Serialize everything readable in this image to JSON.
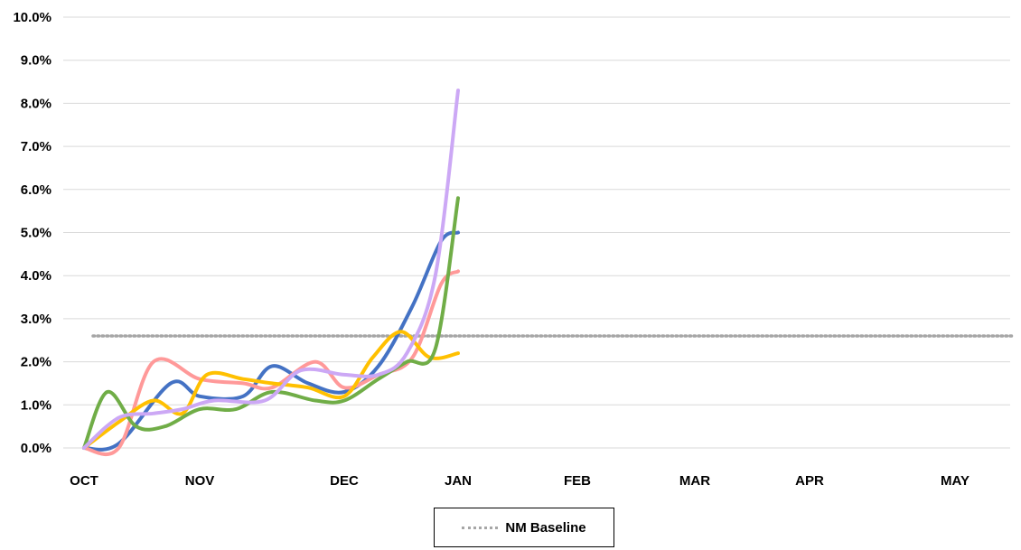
{
  "chart_data": {
    "type": "line",
    "title": "",
    "xlabel": "",
    "ylabel": "",
    "x_ticks": [
      "OCT",
      "NOV",
      "DEC",
      "JAN",
      "FEB",
      "MAR",
      "APR",
      "MAY"
    ],
    "y_ticks": [
      "0.0%",
      "1.0%",
      "2.0%",
      "3.0%",
      "4.0%",
      "5.0%",
      "6.0%",
      "7.0%",
      "8.0%",
      "9.0%",
      "10.0%"
    ],
    "ylim": [
      0,
      10
    ],
    "grid": true,
    "legend_position": "bottom",
    "series": [
      {
        "color": "#4472C4",
        "points": [
          [
            0,
            0.0
          ],
          [
            0.3,
            0.1
          ],
          [
            0.75,
            1.5
          ],
          [
            1.0,
            1.2
          ],
          [
            1.3,
            1.2
          ],
          [
            1.5,
            1.9
          ],
          [
            1.75,
            1.5
          ],
          [
            2.0,
            1.3
          ],
          [
            2.3,
            1.9
          ],
          [
            2.6,
            3.3
          ],
          [
            2.85,
            4.8
          ],
          [
            3.0,
            5.0
          ]
        ]
      },
      {
        "color": "#FF9999",
        "points": [
          [
            0,
            0.0
          ],
          [
            0.3,
            0.0
          ],
          [
            0.6,
            2.0
          ],
          [
            1.0,
            1.6
          ],
          [
            1.3,
            1.5
          ],
          [
            1.5,
            1.4
          ],
          [
            1.8,
            2.0
          ],
          [
            2.0,
            1.4
          ],
          [
            2.3,
            1.7
          ],
          [
            2.6,
            2.1
          ],
          [
            2.85,
            3.8
          ],
          [
            3.0,
            4.1
          ]
        ]
      },
      {
        "color": "#FFC000",
        "points": [
          [
            0,
            0.0
          ],
          [
            0.3,
            0.6
          ],
          [
            0.6,
            1.1
          ],
          [
            0.85,
            0.8
          ],
          [
            1.05,
            1.7
          ],
          [
            1.3,
            1.6
          ],
          [
            1.5,
            1.5
          ],
          [
            1.75,
            1.4
          ],
          [
            2.0,
            1.2
          ],
          [
            2.25,
            2.1
          ],
          [
            2.5,
            2.7
          ],
          [
            2.75,
            2.1
          ],
          [
            3.0,
            2.2
          ]
        ]
      },
      {
        "color": "#70AD47",
        "points": [
          [
            0,
            0.0
          ],
          [
            0.2,
            1.3
          ],
          [
            0.45,
            0.5
          ],
          [
            0.7,
            0.5
          ],
          [
            1.0,
            0.9
          ],
          [
            1.25,
            0.9
          ],
          [
            1.5,
            1.3
          ],
          [
            1.8,
            1.1
          ],
          [
            2.0,
            1.1
          ],
          [
            2.3,
            1.6
          ],
          [
            2.55,
            2.0
          ],
          [
            2.8,
            2.3
          ],
          [
            3.0,
            5.8
          ]
        ]
      },
      {
        "color": "#CCA8F5",
        "points": [
          [
            0,
            0.0
          ],
          [
            0.3,
            0.7
          ],
          [
            0.6,
            0.8
          ],
          [
            0.85,
            0.9
          ],
          [
            1.1,
            1.1
          ],
          [
            1.45,
            1.1
          ],
          [
            1.7,
            1.8
          ],
          [
            2.0,
            1.7
          ],
          [
            2.3,
            1.7
          ],
          [
            2.55,
            2.2
          ],
          [
            2.8,
            4.0
          ],
          [
            3.0,
            8.3
          ]
        ]
      }
    ],
    "baseline": {
      "name": "NM Baseline",
      "value": 2.6,
      "color": "#A6A6A6",
      "style": "dotted"
    }
  }
}
